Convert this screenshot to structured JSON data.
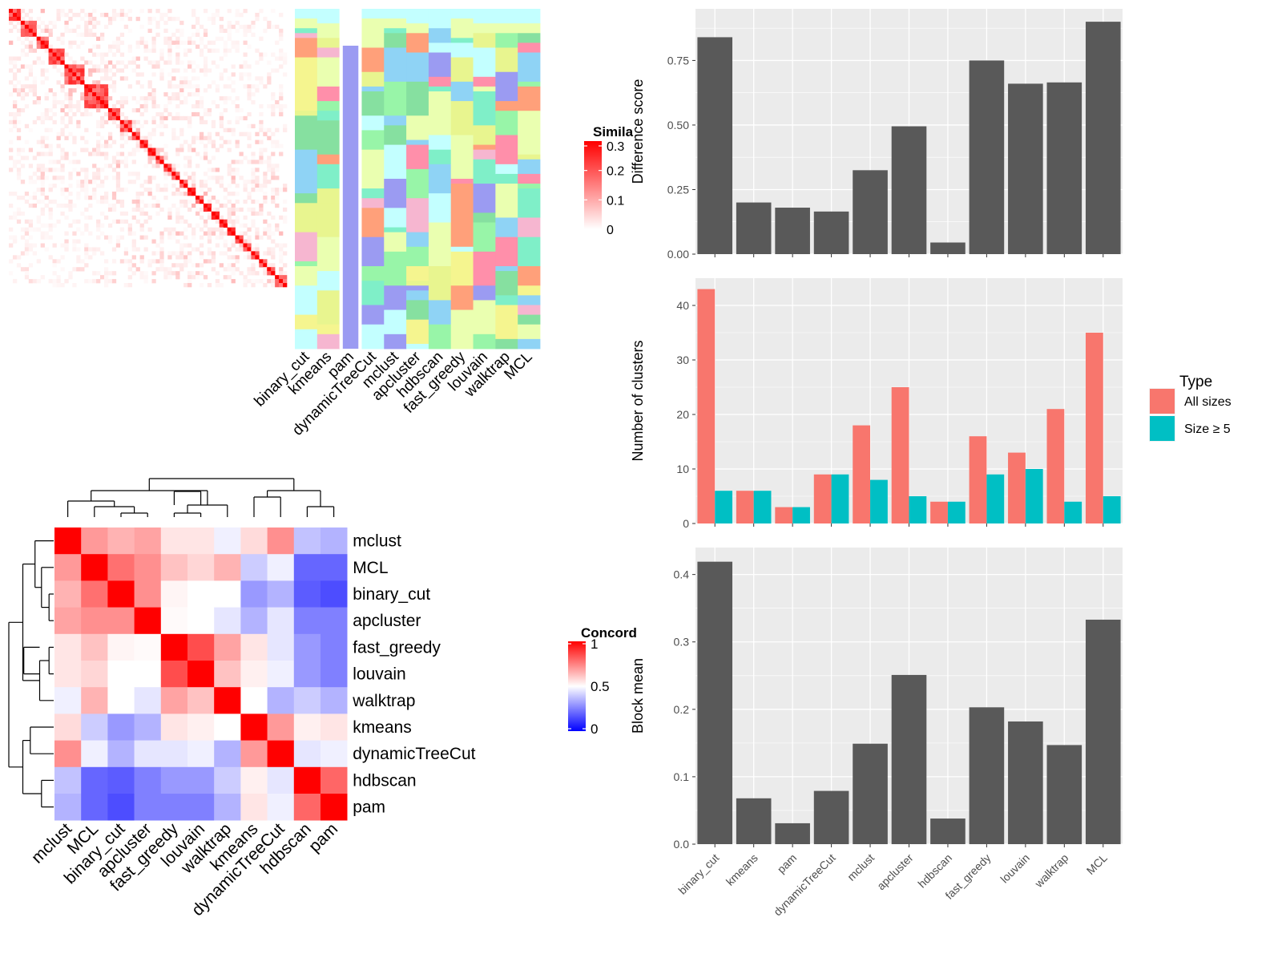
{
  "methods": [
    "binary_cut",
    "kmeans",
    "pam",
    "dynamicTreeCut",
    "mclust",
    "apcluster",
    "hdbscan",
    "fast_greedy",
    "louvain",
    "walktrap",
    "MCL"
  ],
  "panels": {
    "similarity_legend": {
      "title": "Simila",
      "ticks": [
        "0.3",
        "0.2",
        "0.1",
        "0"
      ]
    },
    "concordance_legend": {
      "title": "Concord",
      "ticks": [
        "1",
        "0.5",
        "0"
      ]
    },
    "type_legend": {
      "title": "Type",
      "items": [
        "All sizes",
        "Size ≥ 5"
      ]
    }
  },
  "colors": {
    "bar_fill": "#595959",
    "all_sizes": "#F8766D",
    "size_ge_5": "#00BFC4",
    "panel_bg": "#EBEBEB",
    "heat_high": "#FF0000",
    "heat_low": "#0000FF"
  },
  "chart_data": [
    {
      "type": "heatmap",
      "name": "similarity-matrix",
      "legend_title": "Simila",
      "value_range": [
        0,
        0.3
      ],
      "description": "term similarity matrix, strong diagonal blocks"
    },
    {
      "type": "heatmap",
      "name": "cluster-membership",
      "columns": [
        "binary_cut",
        "kmeans",
        "pam",
        "dynamicTreeCut",
        "mclust",
        "apcluster",
        "hdbscan",
        "fast_greedy",
        "louvain",
        "walktrap",
        "MCL"
      ]
    },
    {
      "type": "heatmap",
      "name": "concordance",
      "legend_title": "Concord",
      "value_range": [
        0,
        1
      ],
      "rows": [
        "mclust",
        "MCL",
        "binary_cut",
        "apcluster",
        "fast_greedy",
        "louvain",
        "walktrap",
        "kmeans",
        "dynamicTreeCut",
        "hdbscan",
        "pam"
      ],
      "columns": [
        "mclust",
        "MCL",
        "binary_cut",
        "apcluster",
        "fast_greedy",
        "louvain",
        "walktrap",
        "kmeans",
        "dynamicTreeCut",
        "hdbscan",
        "pam"
      ],
      "values": [
        [
          1.0,
          0.7,
          0.65,
          0.68,
          0.55,
          0.55,
          0.47,
          0.57,
          0.72,
          0.38,
          0.35
        ],
        [
          0.7,
          1.0,
          0.78,
          0.72,
          0.62,
          0.58,
          0.65,
          0.4,
          0.47,
          0.2,
          0.2
        ],
        [
          0.65,
          0.78,
          1.0,
          0.72,
          0.52,
          0.5,
          0.5,
          0.3,
          0.35,
          0.18,
          0.15
        ],
        [
          0.68,
          0.72,
          0.72,
          1.0,
          0.51,
          0.5,
          0.45,
          0.35,
          0.45,
          0.25,
          0.25
        ],
        [
          0.55,
          0.62,
          0.52,
          0.51,
          1.0,
          0.85,
          0.68,
          0.55,
          0.45,
          0.3,
          0.25
        ],
        [
          0.55,
          0.58,
          0.5,
          0.5,
          0.85,
          1.0,
          0.62,
          0.53,
          0.47,
          0.3,
          0.25
        ],
        [
          0.47,
          0.65,
          0.5,
          0.45,
          0.68,
          0.62,
          1.0,
          0.5,
          0.35,
          0.4,
          0.35
        ],
        [
          0.57,
          0.4,
          0.3,
          0.35,
          0.55,
          0.53,
          0.5,
          1.0,
          0.7,
          0.53,
          0.55
        ],
        [
          0.72,
          0.47,
          0.35,
          0.45,
          0.45,
          0.47,
          0.35,
          0.7,
          1.0,
          0.45,
          0.47
        ],
        [
          0.38,
          0.2,
          0.18,
          0.25,
          0.3,
          0.3,
          0.4,
          0.53,
          0.45,
          1.0,
          0.8
        ],
        [
          0.35,
          0.2,
          0.15,
          0.25,
          0.25,
          0.25,
          0.35,
          0.55,
          0.47,
          0.8,
          1.0
        ]
      ]
    },
    {
      "type": "bar",
      "name": "difference-score",
      "categories": [
        "binary_cut",
        "kmeans",
        "pam",
        "dynamicTreeCut",
        "mclust",
        "apcluster",
        "hdbscan",
        "fast_greedy",
        "louvain",
        "walktrap",
        "MCL"
      ],
      "values": [
        0.84,
        0.2,
        0.18,
        0.165,
        0.325,
        0.495,
        0.045,
        0.75,
        0.66,
        0.665,
        0.9
      ],
      "ylabel": "Difference score",
      "ylim": [
        0,
        0.95
      ],
      "yticks": [
        "0.00",
        "0.25",
        "0.50",
        "0.75"
      ],
      "grid": true
    },
    {
      "type": "bar",
      "name": "number-of-clusters",
      "categories": [
        "binary_cut",
        "kmeans",
        "pam",
        "dynamicTreeCut",
        "mclust",
        "apcluster",
        "hdbscan",
        "fast_greedy",
        "louvain",
        "walktrap",
        "MCL"
      ],
      "series": [
        {
          "name": "All sizes",
          "values": [
            43,
            6,
            3,
            9,
            18,
            25,
            4,
            16,
            13,
            21,
            35
          ]
        },
        {
          "name": "Size ≥ 5",
          "values": [
            6,
            6,
            3,
            9,
            8,
            5,
            4,
            9,
            10,
            4,
            5
          ]
        }
      ],
      "ylabel": "Number of clusters",
      "ylim": [
        0,
        45
      ],
      "yticks": [
        "0",
        "10",
        "20",
        "30",
        "40"
      ],
      "legend": "right",
      "grid": true
    },
    {
      "type": "bar",
      "name": "block-mean",
      "categories": [
        "binary_cut",
        "kmeans",
        "pam",
        "dynamicTreeCut",
        "mclust",
        "apcluster",
        "hdbscan",
        "fast_greedy",
        "louvain",
        "walktrap",
        "MCL"
      ],
      "values": [
        0.419,
        0.068,
        0.031,
        0.079,
        0.149,
        0.251,
        0.038,
        0.203,
        0.182,
        0.147,
        0.333
      ],
      "ylabel": "Block mean",
      "ylim": [
        0,
        0.44
      ],
      "yticks": [
        "0.0",
        "0.1",
        "0.2",
        "0.3",
        "0.4"
      ],
      "grid": true
    }
  ]
}
